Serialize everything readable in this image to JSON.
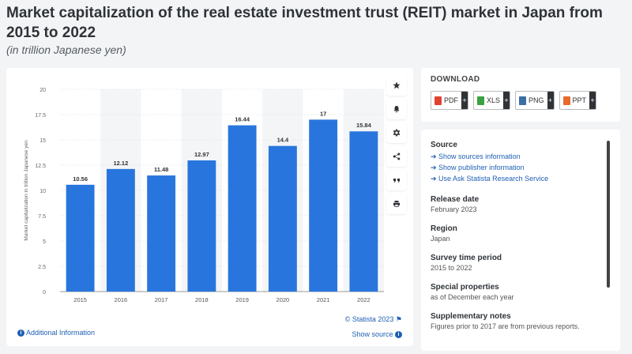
{
  "header": {
    "title": "Market capitalization of the real estate investment trust (REIT) market in Japan from 2015 to 2022",
    "subtitle": "(in trillion Japanese yen)"
  },
  "chart_data": {
    "type": "bar",
    "categories": [
      "2015",
      "2016",
      "2017",
      "2018",
      "2019",
      "2020",
      "2021",
      "2022"
    ],
    "values": [
      10.56,
      12.12,
      11.48,
      12.97,
      16.44,
      14.4,
      17,
      15.84
    ],
    "value_labels": [
      "10.56",
      "12.12",
      "11.48",
      "12.97",
      "16.44",
      "14.4",
      "17",
      "15.84"
    ],
    "ylabel": "Market capitalization in trillion Japanese yen",
    "ylim": [
      0,
      20
    ],
    "yticks": [
      0,
      2.5,
      5,
      7.5,
      10,
      12.5,
      15,
      17.5,
      20
    ],
    "ytick_labels": [
      "0",
      "2.5",
      "5",
      "7.5",
      "10",
      "12.5",
      "15",
      "17.5",
      "20"
    ],
    "bar_color": "#2876dd",
    "grid": true
  },
  "chart_footer": {
    "additional_info": "Additional Information",
    "copyright": "© Statista 2023",
    "show_source": "Show source"
  },
  "toolbar": {
    "buttons": [
      "star-icon",
      "bell-icon",
      "gear-icon",
      "share-icon",
      "quote-icon",
      "print-icon"
    ]
  },
  "download": {
    "title": "DOWNLOAD",
    "buttons": [
      {
        "label": "PDF",
        "color": "#e2412f"
      },
      {
        "label": "XLS",
        "color": "#3aa241"
      },
      {
        "label": "PNG",
        "color": "#3b6ea5"
      },
      {
        "label": "PPT",
        "color": "#e8692c"
      }
    ]
  },
  "info": {
    "source_label": "Source",
    "source_links": [
      "Show sources information",
      "Show publisher information",
      "Use Ask Statista Research Service"
    ],
    "release_label": "Release date",
    "release_value": "February 2023",
    "region_label": "Region",
    "region_value": "Japan",
    "survey_label": "Survey time period",
    "survey_value": "2015 to 2022",
    "special_label": "Special properties",
    "special_value": "as of December each year",
    "notes_label": "Supplementary notes",
    "notes_value": "Figures prior to 2017 are from previous reports."
  }
}
